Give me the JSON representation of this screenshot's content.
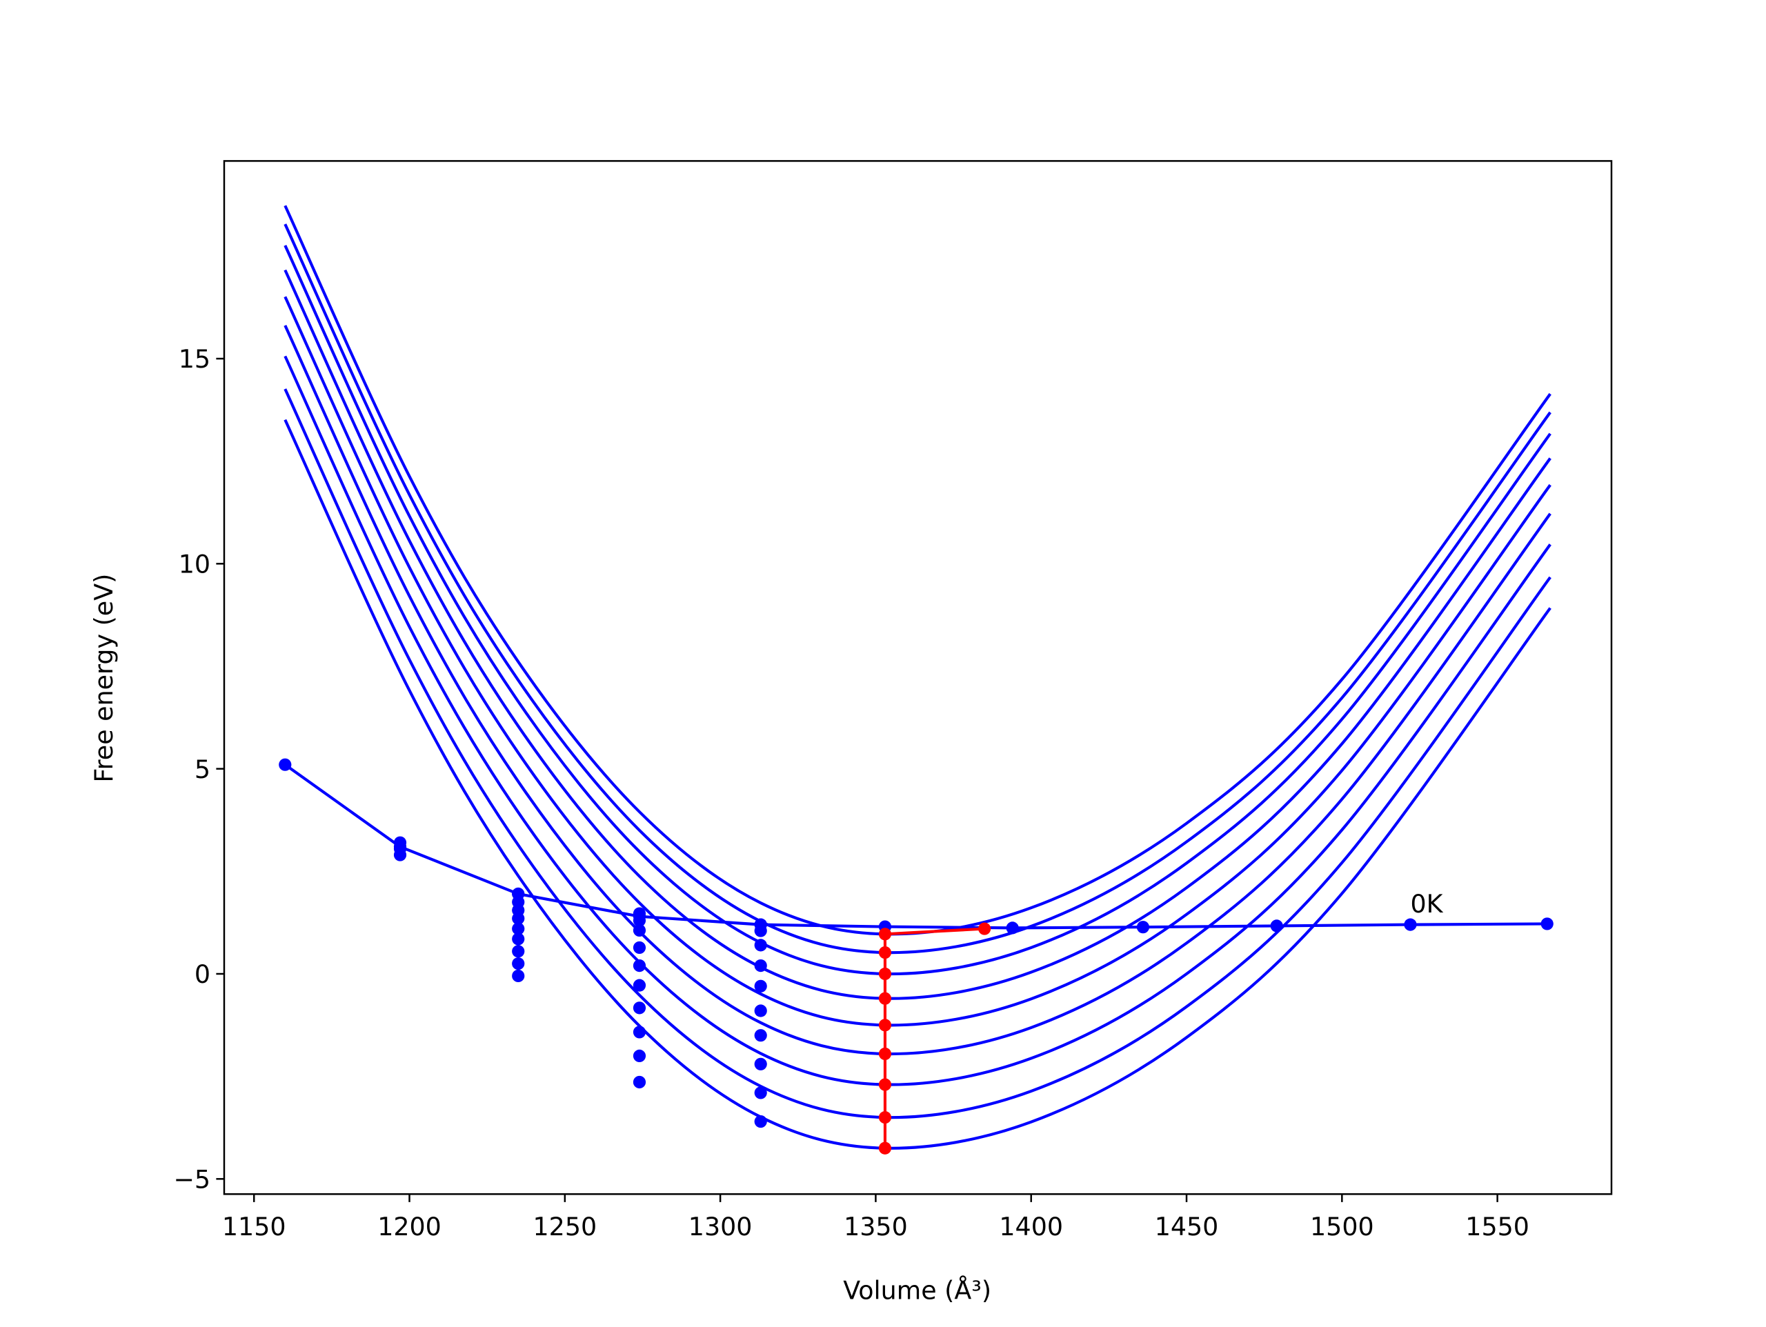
{
  "chart_data": {
    "type": "line",
    "xlabel": "Volume (Å³)",
    "ylabel": "Free energy (eV)",
    "xlim": [
      1140.4,
      1586.7
    ],
    "ylim": [
      -5.37,
      19.82
    ],
    "xticks": [
      1150,
      1200,
      1250,
      1300,
      1350,
      1400,
      1450,
      1500,
      1550
    ],
    "yticks": [
      {
        "value": -5,
        "label": "−5"
      },
      0,
      5,
      10,
      15
    ],
    "series": [
      {
        "color": "#0000ff",
        "style": "line",
        "x": [
          1160,
          1200,
          1235,
          1274,
          1313,
          1353,
          1400,
          1450,
          1500,
          1567
        ],
        "values": [
          18.73,
          12.13,
          7.61,
          3.95,
          1.73,
          0.97,
          1.61,
          3.67,
          7.18,
          14.14
        ]
      },
      {
        "color": "#0000ff",
        "style": "line",
        "x": [
          1160,
          1200,
          1235,
          1274,
          1313,
          1353,
          1400,
          1450,
          1500,
          1567
        ],
        "values": [
          18.28,
          11.68,
          7.16,
          3.5,
          1.28,
          0.52,
          1.16,
          3.22,
          6.73,
          13.69
        ]
      },
      {
        "color": "#0000ff",
        "style": "line",
        "x": [
          1160,
          1200,
          1235,
          1274,
          1313,
          1353,
          1400,
          1450,
          1500,
          1567
        ],
        "values": [
          17.76,
          11.16,
          6.64,
          2.98,
          0.76,
          0,
          0.64,
          2.7,
          6.21,
          13.17
        ]
      },
      {
        "color": "#0000ff",
        "style": "line",
        "x": [
          1160,
          1200,
          1235,
          1274,
          1313,
          1353,
          1400,
          1450,
          1500,
          1567
        ],
        "values": [
          17.16,
          10.56,
          6.04,
          2.38,
          0.16,
          -0.6,
          0.04,
          2.1,
          5.61,
          12.57
        ]
      },
      {
        "color": "#0000ff",
        "style": "line",
        "x": [
          1160,
          1200,
          1235,
          1274,
          1313,
          1353,
          1400,
          1450,
          1500,
          1567
        ],
        "values": [
          16.51,
          9.91,
          5.39,
          1.73,
          -0.49,
          -1.25,
          -0.61,
          1.45,
          4.96,
          11.92
        ]
      },
      {
        "color": "#0000ff",
        "style": "line",
        "x": [
          1160,
          1200,
          1235,
          1274,
          1313,
          1353,
          1400,
          1450,
          1500,
          1567
        ],
        "values": [
          15.81,
          9.21,
          4.69,
          1.03,
          -1.19,
          -1.95,
          -1.31,
          0.75,
          4.26,
          11.22
        ]
      },
      {
        "color": "#0000ff",
        "style": "line",
        "x": [
          1160,
          1200,
          1235,
          1274,
          1313,
          1353,
          1400,
          1450,
          1500,
          1567
        ],
        "values": [
          15.06,
          8.46,
          3.94,
          0.28,
          -1.94,
          -2.7,
          -2.06,
          0,
          3.51,
          10.47
        ]
      },
      {
        "color": "#0000ff",
        "style": "line",
        "x": [
          1160,
          1200,
          1235,
          1274,
          1313,
          1353,
          1400,
          1450,
          1500,
          1567
        ],
        "values": [
          14.26,
          7.66,
          3.14,
          -0.52,
          -2.74,
          -3.5,
          -2.86,
          -0.8,
          2.71,
          9.67
        ]
      },
      {
        "color": "#0000ff",
        "style": "line",
        "x": [
          1160,
          1200,
          1235,
          1274,
          1313,
          1353,
          1400,
          1450,
          1500,
          1567
        ],
        "values": [
          13.51,
          6.91,
          2.39,
          -1.27,
          -3.49,
          -4.25,
          -3.61,
          -1.55,
          1.96,
          8.92
        ]
      },
      {
        "color": "#0000ff",
        "style": "line+markers",
        "x": [
          1160,
          1197,
          1235,
          1274,
          1313,
          1353,
          1394,
          1436,
          1479,
          1522,
          1566
        ],
        "values": [
          5.1,
          3.1,
          1.95,
          1.4,
          1.2,
          1.15,
          1.12,
          1.14,
          1.17,
          1.2,
          1.22
        ]
      },
      {
        "color": "#0000ff",
        "style": "markers",
        "x": [
          1197,
          1197,
          1197,
          1235,
          1235,
          1235,
          1235,
          1235,
          1235,
          1235,
          1235,
          1235,
          1274,
          1274,
          1274,
          1274,
          1274,
          1274,
          1274,
          1274,
          1274,
          1274,
          1313,
          1313,
          1313,
          1313,
          1313,
          1313,
          1313,
          1313,
          1313,
          1313
        ],
        "values": [
          3.2,
          3.05,
          2.9,
          1.95,
          1.75,
          1.55,
          1.35,
          1.1,
          0.85,
          0.55,
          0.25,
          -0.05,
          1.47,
          1.3,
          1.06,
          0.64,
          0.2,
          -0.28,
          -0.83,
          -1.42,
          -2.0,
          -2.64,
          1.2,
          1.05,
          0.7,
          0.2,
          -0.3,
          -0.9,
          -1.5,
          -2.2,
          -2.9,
          -3.6
        ]
      },
      {
        "color": "#ff0000",
        "style": "line+markers",
        "x": [
          1385,
          1353,
          1353,
          1353,
          1353,
          1353,
          1353,
          1353,
          1353,
          1353
        ],
        "values": [
          1.1,
          0.97,
          0.52,
          0,
          -0.6,
          -1.25,
          -1.95,
          -2.7,
          -3.5,
          -4.25
        ]
      }
    ],
    "annotations": [
      {
        "text": "0K",
        "x": 1522,
        "y": 1.5
      }
    ]
  }
}
